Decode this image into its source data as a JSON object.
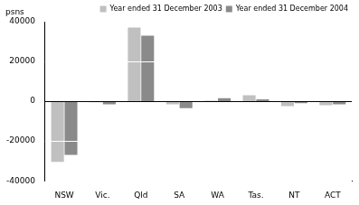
{
  "chart_data": {
    "type": "bar",
    "y_label": "psns",
    "categories": [
      "NSW",
      "Vic.",
      "Qld",
      "SA",
      "WA",
      "Tas.",
      "NT",
      "ACT"
    ],
    "series": [
      {
        "name": "Year ended 31 December 2003",
        "color": "#c0c0c0",
        "values": [
          -30500,
          -500,
          37000,
          -1500,
          300,
          3000,
          -2500,
          -2000
        ]
      },
      {
        "name": "Year ended 31 December 2004",
        "color": "#8a8a8a",
        "values": [
          -27000,
          -1500,
          33000,
          -3500,
          1500,
          1000,
          -1000,
          -1500
        ]
      }
    ],
    "ylim": [
      -40000,
      40000
    ],
    "yticks": [
      -40000,
      -20000,
      0,
      20000,
      40000
    ],
    "grid": true,
    "legend": "top-right"
  }
}
